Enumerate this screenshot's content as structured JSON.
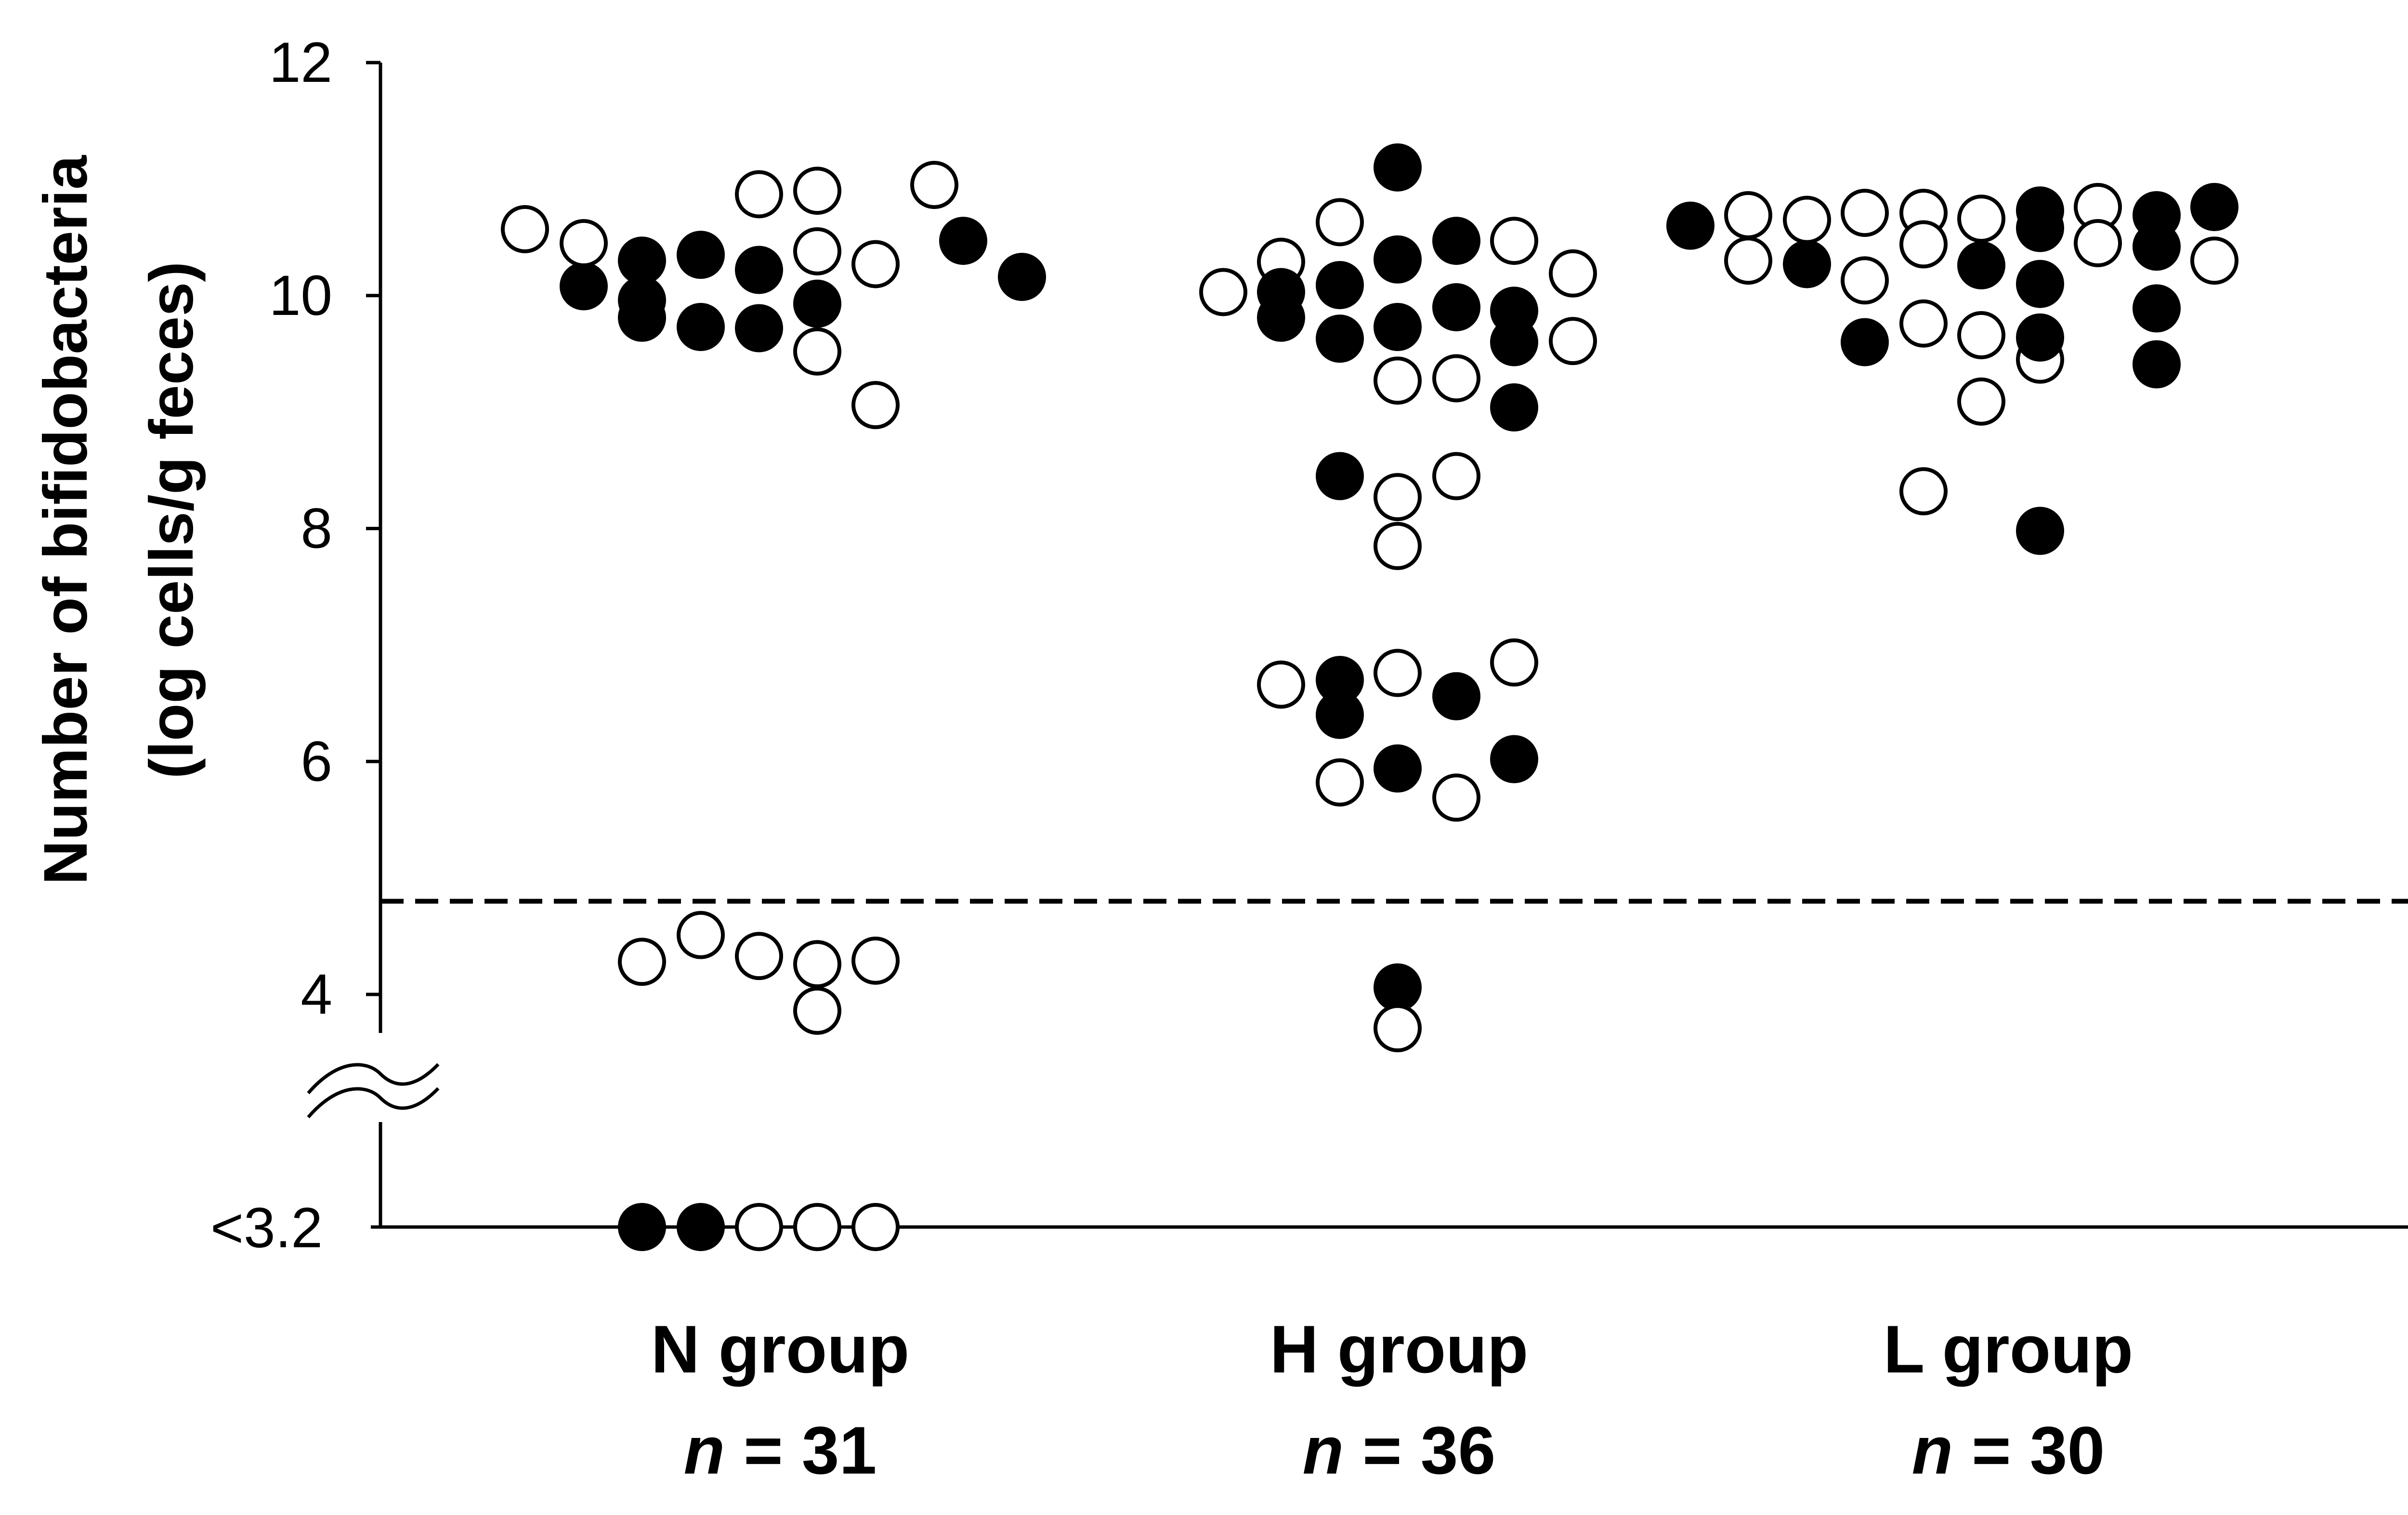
{
  "chart_data": {
    "type": "scatter",
    "ylabel_line1": "Number of bifidobacteria",
    "ylabel_line2": "(log cells/g feces)",
    "yticks": [
      "12",
      "10",
      "8",
      "6",
      "4"
    ],
    "ytick_values": [
      12,
      10,
      8,
      6,
      4
    ],
    "below_limit_label": "<3.2",
    "detection_limit": 4.8,
    "ylim": [
      3.2,
      12
    ],
    "axis_break": true,
    "groups": [
      {
        "name": "N group",
        "n_label_italic": "n",
        "n_label_rest": " = 31",
        "points": [
          {
            "y": 10.57,
            "filled": false
          },
          {
            "y": 10.08,
            "filled": true
          },
          {
            "y": 10.45,
            "filled": false
          },
          {
            "y": 9.81,
            "filled": true
          },
          {
            "y": 10.3,
            "filled": true
          },
          {
            "y": 9.96,
            "filled": true
          },
          {
            "y": 10.35,
            "filled": true
          },
          {
            "y": 9.73,
            "filled": true
          },
          {
            "y": 10.87,
            "filled": false
          },
          {
            "y": 10.22,
            "filled": true
          },
          {
            "y": 9.72,
            "filled": true
          },
          {
            "y": 10.9,
            "filled": false
          },
          {
            "y": 10.38,
            "filled": false
          },
          {
            "y": 9.93,
            "filled": true
          },
          {
            "y": 9.52,
            "filled": false
          },
          {
            "y": 10.27,
            "filled": false
          },
          {
            "y": 9.06,
            "filled": false
          },
          {
            "y": 10.95,
            "filled": false
          },
          {
            "y": 10.47,
            "filled": true
          },
          {
            "y": 10.16,
            "filled": true
          },
          {
            "y": 4.28,
            "filled": false
          },
          {
            "y": 4.51,
            "filled": false
          },
          {
            "y": 4.33,
            "filled": false
          },
          {
            "y": 4.26,
            "filled": false
          },
          {
            "y": 3.86,
            "filled": false
          },
          {
            "y": 4.29,
            "filled": false
          },
          {
            "y": 3.2,
            "filled": true,
            "below_limit": true
          },
          {
            "y": 3.2,
            "filled": true,
            "below_limit": true
          },
          {
            "y": 3.2,
            "filled": false,
            "below_limit": true
          },
          {
            "y": 3.2,
            "filled": false,
            "below_limit": true
          },
          {
            "y": 3.2,
            "filled": false,
            "below_limit": true
          }
        ]
      },
      {
        "name": "H group",
        "n_label_italic": "n",
        "n_label_rest": " = 36",
        "points": [
          {
            "y": 10.03,
            "filled": false
          },
          {
            "y": 10.29,
            "filled": false
          },
          {
            "y": 10.03,
            "filled": true
          },
          {
            "y": 9.81,
            "filled": true
          },
          {
            "y": 10.63,
            "filled": false
          },
          {
            "y": 10.09,
            "filled": true
          },
          {
            "y": 9.63,
            "filled": true
          },
          {
            "y": 11.1,
            "filled": true
          },
          {
            "y": 10.31,
            "filled": true
          },
          {
            "y": 9.73,
            "filled": true
          },
          {
            "y": 9.27,
            "filled": false
          },
          {
            "y": 10.47,
            "filled": true
          },
          {
            "y": 9.9,
            "filled": true
          },
          {
            "y": 9.29,
            "filled": false
          },
          {
            "y": 10.47,
            "filled": false
          },
          {
            "y": 9.87,
            "filled": true
          },
          {
            "y": 9.6,
            "filled": true
          },
          {
            "y": 9.04,
            "filled": true
          },
          {
            "y": 10.19,
            "filled": false
          },
          {
            "y": 9.61,
            "filled": false
          },
          {
            "y": 8.45,
            "filled": true
          },
          {
            "y": 8.27,
            "filled": false
          },
          {
            "y": 7.85,
            "filled": false
          },
          {
            "y": 8.45,
            "filled": false
          },
          {
            "y": 6.66,
            "filled": false
          },
          {
            "y": 6.7,
            "filled": true
          },
          {
            "y": 6.4,
            "filled": true
          },
          {
            "y": 5.82,
            "filled": false
          },
          {
            "y": 6.76,
            "filled": false
          },
          {
            "y": 5.94,
            "filled": true
          },
          {
            "y": 6.56,
            "filled": true
          },
          {
            "y": 5.69,
            "filled": false
          },
          {
            "y": 6.85,
            "filled": false
          },
          {
            "y": 6.02,
            "filled": true
          },
          {
            "y": 4.06,
            "filled": true
          },
          {
            "y": 3.71,
            "filled": false
          }
        ]
      },
      {
        "name": "L group",
        "n_label_italic": "n",
        "n_label_rest": " = 30",
        "points": [
          {
            "y": 10.6,
            "filled": true
          },
          {
            "y": 10.69,
            "filled": false
          },
          {
            "y": 10.3,
            "filled": false
          },
          {
            "y": 10.65,
            "filled": false
          },
          {
            "y": 10.27,
            "filled": true
          },
          {
            "y": 10.71,
            "filled": false
          },
          {
            "y": 10.13,
            "filled": false
          },
          {
            "y": 9.6,
            "filled": true
          },
          {
            "y": 10.71,
            "filled": false
          },
          {
            "y": 10.44,
            "filled": false
          },
          {
            "y": 9.76,
            "filled": false
          },
          {
            "y": 8.32,
            "filled": false
          },
          {
            "y": 10.66,
            "filled": false
          },
          {
            "y": 10.26,
            "filled": true
          },
          {
            "y": 9.66,
            "filled": false
          },
          {
            "y": 9.09,
            "filled": false
          },
          {
            "y": 10.73,
            "filled": true
          },
          {
            "y": 10.58,
            "filled": true
          },
          {
            "y": 10.1,
            "filled": true
          },
          {
            "y": 9.45,
            "filled": false
          },
          {
            "y": 9.64,
            "filled": true
          },
          {
            "y": 7.98,
            "filled": true
          },
          {
            "y": 10.76,
            "filled": false
          },
          {
            "y": 10.45,
            "filled": false
          },
          {
            "y": 10.69,
            "filled": true
          },
          {
            "y": 10.42,
            "filled": true
          },
          {
            "y": 9.89,
            "filled": true
          },
          {
            "y": 9.41,
            "filled": true
          },
          {
            "y": 10.76,
            "filled": true
          },
          {
            "y": 10.3,
            "filled": false
          }
        ]
      }
    ]
  },
  "colors": {
    "marker": "#000000",
    "background": "#ffffff"
  }
}
